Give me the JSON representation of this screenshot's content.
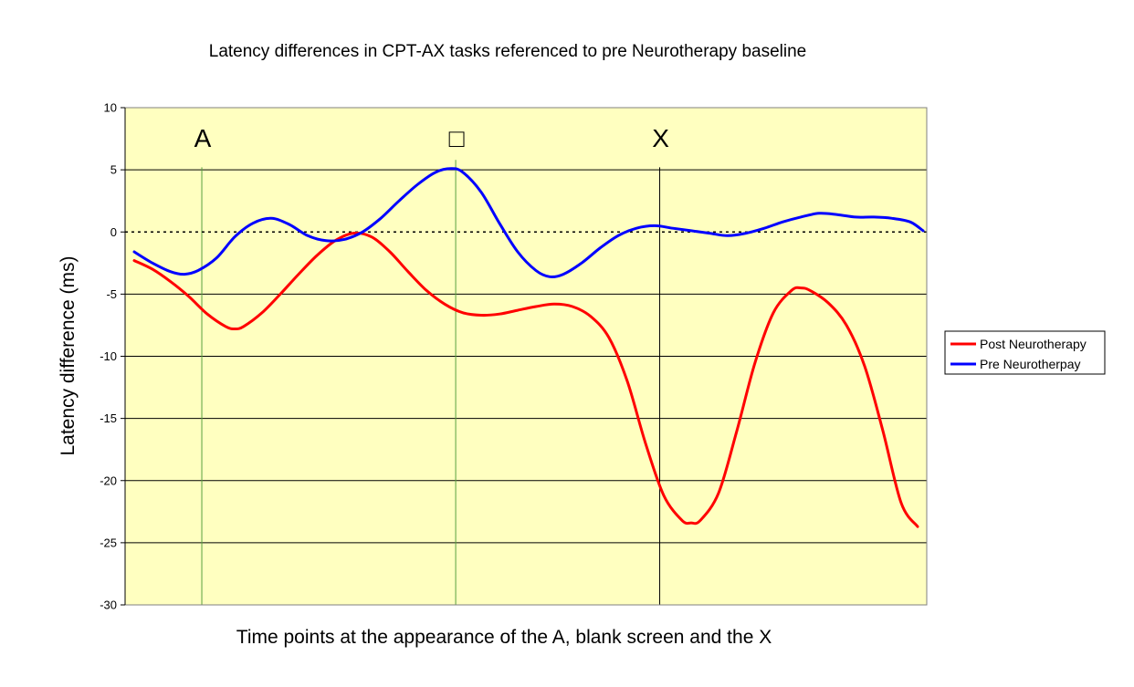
{
  "chart_data": {
    "type": "line",
    "title": "Latency differences in CPT-AX tasks referenced to pre Neurotherapy baseline",
    "xlabel": "Time points at the appearance of the A, blank screen and the X",
    "ylabel": "Latency difference (ms)",
    "ylim": [
      -30,
      10
    ],
    "yticks": [
      10,
      5,
      0,
      -5,
      -10,
      -15,
      -20,
      -25,
      -30
    ],
    "ytick_labels": [
      "10",
      "5",
      "0",
      "-5",
      "-10",
      "-15",
      "-20",
      "-25",
      "-30"
    ],
    "grid": true,
    "plot_background": "#ffffc0",
    "zero_line": "dotted",
    "legend_position": "right",
    "event_markers": [
      {
        "label": "A",
        "x": 0.0957,
        "color": "#5aa040"
      },
      {
        "label": "□",
        "x": 0.4124,
        "color": "#5aa040"
      },
      {
        "label": "X",
        "x": 0.6669,
        "color": "#000000"
      }
    ],
    "series": [
      {
        "name": "Post Neurotherapy",
        "color": "#ff0000",
        "points": [
          [
            0.0114,
            -2.3
          ],
          [
            0.0342,
            -3.0
          ],
          [
            0.0569,
            -4.0
          ],
          [
            0.0797,
            -5.2
          ],
          [
            0.1025,
            -6.6
          ],
          [
            0.1253,
            -7.6
          ],
          [
            0.1367,
            -7.8
          ],
          [
            0.148,
            -7.6
          ],
          [
            0.1708,
            -6.5
          ],
          [
            0.1936,
            -5.0
          ],
          [
            0.2164,
            -3.4
          ],
          [
            0.2392,
            -1.9
          ],
          [
            0.262,
            -0.7
          ],
          [
            0.2847,
            -0.1
          ],
          [
            0.3075,
            -0.4
          ],
          [
            0.3303,
            -1.6
          ],
          [
            0.3531,
            -3.2
          ],
          [
            0.3759,
            -4.7
          ],
          [
            0.3986,
            -5.8
          ],
          [
            0.4214,
            -6.5
          ],
          [
            0.4442,
            -6.7
          ],
          [
            0.467,
            -6.6
          ],
          [
            0.4897,
            -6.3
          ],
          [
            0.5125,
            -6.0
          ],
          [
            0.5353,
            -5.8
          ],
          [
            0.5581,
            -6.0
          ],
          [
            0.5809,
            -6.8
          ],
          [
            0.6036,
            -8.5
          ],
          [
            0.6264,
            -12.0
          ],
          [
            0.6492,
            -17.0
          ],
          [
            0.672,
            -21.2
          ],
          [
            0.6948,
            -23.2
          ],
          [
            0.7062,
            -23.4
          ],
          [
            0.7175,
            -23.2
          ],
          [
            0.7403,
            -21.0
          ],
          [
            0.7631,
            -16.0
          ],
          [
            0.7859,
            -10.5
          ],
          [
            0.8087,
            -6.5
          ],
          [
            0.8314,
            -4.7
          ],
          [
            0.8428,
            -4.5
          ],
          [
            0.8542,
            -4.7
          ],
          [
            0.877,
            -5.7
          ],
          [
            0.8998,
            -7.5
          ],
          [
            0.9226,
            -10.8
          ],
          [
            0.9453,
            -16.0
          ],
          [
            0.9681,
            -21.8
          ],
          [
            0.9886,
            -23.7
          ]
        ]
      },
      {
        "name": "Pre Neurotherpay",
        "color": "#0000ff",
        "points": [
          [
            0.0114,
            -1.6
          ],
          [
            0.0342,
            -2.5
          ],
          [
            0.0569,
            -3.2
          ],
          [
            0.074,
            -3.4
          ],
          [
            0.0911,
            -3.1
          ],
          [
            0.1139,
            -2.1
          ],
          [
            0.1367,
            -0.4
          ],
          [
            0.1594,
            0.7
          ],
          [
            0.1822,
            1.1
          ],
          [
            0.205,
            0.6
          ],
          [
            0.2278,
            -0.3
          ],
          [
            0.2506,
            -0.7
          ],
          [
            0.2734,
            -0.6
          ],
          [
            0.2961,
            0.0
          ],
          [
            0.3189,
            1.1
          ],
          [
            0.3417,
            2.5
          ],
          [
            0.3645,
            3.8
          ],
          [
            0.3872,
            4.8
          ],
          [
            0.4066,
            5.1
          ],
          [
            0.4214,
            4.8
          ],
          [
            0.4442,
            3.2
          ],
          [
            0.467,
            0.7
          ],
          [
            0.4897,
            -1.6
          ],
          [
            0.5125,
            -3.1
          ],
          [
            0.5296,
            -3.6
          ],
          [
            0.5467,
            -3.4
          ],
          [
            0.5695,
            -2.5
          ],
          [
            0.5923,
            -1.3
          ],
          [
            0.615,
            -0.3
          ],
          [
            0.6378,
            0.3
          ],
          [
            0.6606,
            0.5
          ],
          [
            0.6834,
            0.3
          ],
          [
            0.7062,
            0.1
          ],
          [
            0.7289,
            -0.1
          ],
          [
            0.7517,
            -0.3
          ],
          [
            0.7745,
            -0.1
          ],
          [
            0.7973,
            0.3
          ],
          [
            0.82,
            0.8
          ],
          [
            0.8428,
            1.2
          ],
          [
            0.8656,
            1.5
          ],
          [
            0.8884,
            1.4
          ],
          [
            0.9112,
            1.2
          ],
          [
            0.9339,
            1.2
          ],
          [
            0.9567,
            1.1
          ],
          [
            0.9795,
            0.8
          ],
          [
            0.9954,
            0.1
          ]
        ]
      }
    ]
  }
}
